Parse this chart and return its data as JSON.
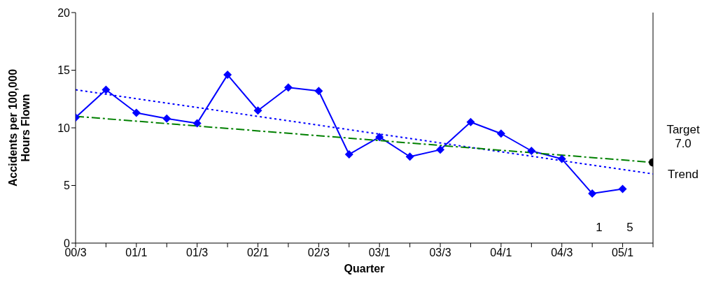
{
  "chart_data": {
    "type": "line",
    "xlabel": "Quarter",
    "ylabel": "Accidents per 100,000 Hours Flown",
    "categories": [
      "00/3",
      null,
      "01/1",
      null,
      "01/3",
      null,
      "02/1",
      null,
      "02/3",
      null,
      "03/1",
      null,
      "03/3",
      null,
      "04/1",
      null,
      "04/3",
      null,
      "05/1",
      null
    ],
    "series": [
      {
        "color": "#0000ff",
        "marker": "diamond",
        "line_style": "solid",
        "values": [
          10.9,
          13.3,
          11.3,
          10.8,
          10.4,
          14.6,
          11.5,
          13.5,
          13.2,
          7.7,
          9.2,
          7.5,
          8.1,
          10.5,
          9.5,
          8.0,
          7.3,
          4.3,
          4.7,
          null
        ]
      },
      {
        "type": "line",
        "color": "#0000ff",
        "marker": "none",
        "line_style": "dotted",
        "values": [
          13.3,
          null,
          null,
          null,
          null,
          null,
          null,
          null,
          null,
          null,
          null,
          null,
          null,
          null,
          null,
          null,
          null,
          null,
          null,
          6.0
        ]
      },
      {
        "type": "line",
        "color": "#008000",
        "marker": "none",
        "line_style": "dashed",
        "values": [
          11.0,
          null,
          null,
          null,
          null,
          null,
          null,
          null,
          null,
          null,
          null,
          null,
          null,
          null,
          null,
          null,
          null,
          null,
          null,
          7.0
        ]
      },
      {
        "type": "scatter",
        "color": "#000000",
        "marker": "circle",
        "values": [
          null,
          null,
          null,
          null,
          null,
          null,
          null,
          null,
          null,
          null,
          null,
          null,
          null,
          null,
          null,
          null,
          null,
          null,
          null,
          7.0
        ]
      }
    ],
    "ylim": [
      0,
      20
    ],
    "yticks": [
      0,
      5,
      10,
      15,
      20
    ],
    "annotations": [
      "Target 7.0",
      "Trend",
      "1",
      "5"
    ]
  }
}
